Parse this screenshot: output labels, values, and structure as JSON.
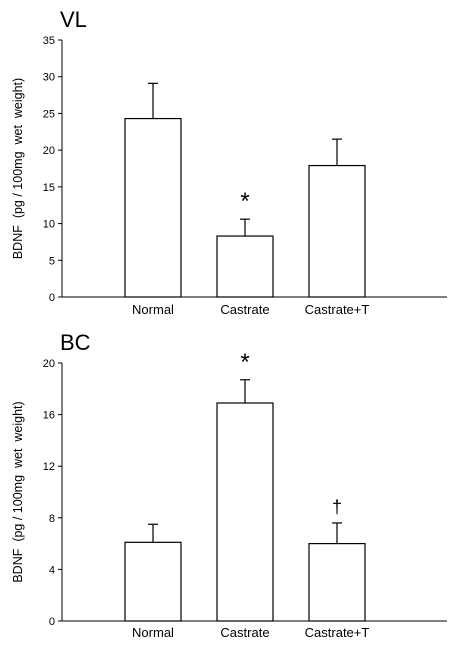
{
  "chart_data": [
    {
      "type": "bar",
      "title": "VL",
      "ylabel": "BDNF  (pg / 100mg  wet  weight)",
      "xlabel": "",
      "categories": [
        "Normal",
        "Castrate",
        "Castrate+T"
      ],
      "values": [
        24.3,
        8.3,
        17.9
      ],
      "errors": [
        4.8,
        2.3,
        3.6
      ],
      "annotations": [
        "",
        "*",
        ""
      ],
      "ylim": [
        0,
        35
      ],
      "yticks": [
        0,
        5,
        10,
        15,
        20,
        25,
        30,
        35
      ],
      "grid": false,
      "bar_fill": "#ffffff"
    },
    {
      "type": "bar",
      "title": "BC",
      "ylabel": "BDNF  (pg / 100mg  wet  weight)",
      "xlabel": "",
      "categories": [
        "Normal",
        "Castrate",
        "Castrate+T"
      ],
      "values": [
        6.1,
        16.9,
        6.0
      ],
      "errors": [
        1.4,
        1.8,
        1.6
      ],
      "annotations": [
        "",
        "*",
        "†"
      ],
      "ylim": [
        0,
        20
      ],
      "yticks": [
        0,
        4,
        8,
        12,
        16,
        20
      ],
      "grid": false,
      "bar_fill": "#ffffff"
    }
  ]
}
